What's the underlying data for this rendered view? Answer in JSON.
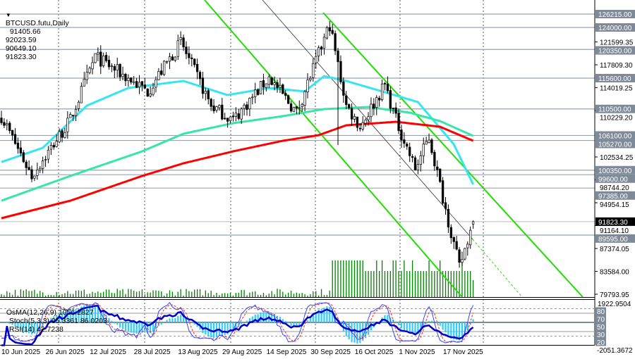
{
  "header": {
    "menu_icon": "triangle-down-icon",
    "symbol": "BTCUSD.futu,Daily",
    "open": "91405.66",
    "high": "92023.59",
    "low": "90649.10",
    "close": "91823.30"
  },
  "indicator_header": {
    "osma": "OsMA(12,26,9) 1056.2827",
    "stoch": "Stoch(5,3,3) 95.3361 86.0203",
    "rsi": "RSI(14) 42.7238"
  },
  "price_axis": {
    "ticks": [
      "121599.35",
      "117809.30",
      "114019.25",
      "110229.20",
      "102534.25",
      "98744.20",
      "94954.15",
      "91164.10",
      "87374.05",
      "83584.00",
      "79793.95"
    ],
    "levels": [
      "126215.00",
      "124000.00",
      "120350.00",
      "115600.00",
      "110500.00",
      "106100.00",
      "105270.00",
      "100350.00",
      "99600.00",
      "97385.00",
      "89595.00"
    ],
    "current_price": "91823.30"
  },
  "indicator_axis": {
    "max": "1922.9504",
    "min": "-2051.3672",
    "levels": [
      "80",
      "70",
      "50",
      "30",
      "20"
    ]
  },
  "time_axis": [
    "10 Jun 2025",
    "26 Jun 2025",
    "12 Jul 2025",
    "28 Jul 2025",
    "13 Aug 2025",
    "29 Aug 2025",
    "14 Sep 2025",
    "30 Sep 2025",
    "16 Oct 2025",
    "1 Nov 2025",
    "17 Nov 2025"
  ],
  "colors": {
    "bull_candle": "#ffffff",
    "bear_candle": "#000000",
    "ma_fast": "#33e6f0",
    "ma_mid": "#36e6a8",
    "ma_slow": "#ff0000",
    "trendline": "#22dd00",
    "level_label": "#7f8a99",
    "osma": "#33ccf5",
    "stoch_main": "#3344ff",
    "stoch_signal": "#ff2020",
    "rsi": "#0000cc",
    "volume": "#008000"
  },
  "chart_data": {
    "type": "candlestick",
    "symbol": "BTCUSD.futu",
    "timeframe": "Daily",
    "x_start": "2025-06-10",
    "last_date": "2025-11-28",
    "y_range": [
      79793.95,
      126215
    ],
    "last_ohlc": [
      91405.66,
      92023.59,
      90649.1,
      91823.3
    ],
    "close_path": [
      [
        "2025-06-10",
        109300
      ],
      [
        "2025-06-21",
        99400
      ],
      [
        "2025-07-05",
        108700
      ],
      [
        "2025-07-14",
        119200
      ],
      [
        "2025-08-02",
        113400
      ],
      [
        "2025-08-14",
        121550
      ],
      [
        "2025-08-25",
        111050
      ],
      [
        "2025-09-02",
        108700
      ],
      [
        "2025-09-15",
        115700
      ],
      [
        "2025-09-25",
        109900
      ],
      [
        "2025-10-07",
        124460
      ],
      [
        "2025-10-13",
        111050
      ],
      [
        "2025-10-18",
        107550
      ],
      [
        "2025-10-27",
        114550
      ],
      [
        "2025-10-31",
        108700
      ],
      [
        "2025-11-07",
        100550
      ],
      [
        "2025-11-12",
        105800
      ],
      [
        "2025-11-17",
        95890
      ],
      [
        "2025-11-23",
        84230
      ],
      [
        "2025-11-28",
        91823.3
      ]
    ],
    "moving_averages": [
      {
        "color_key": "ma_fast",
        "points": [
          [
            "2025-06-10",
            101700
          ],
          [
            "2025-06-25",
            104050
          ],
          [
            "2025-07-11",
            111050
          ],
          [
            "2025-07-26",
            113970
          ],
          [
            "2025-08-15",
            115130
          ],
          [
            "2025-08-31",
            112800
          ],
          [
            "2025-09-15",
            113970
          ],
          [
            "2025-09-28",
            113400
          ],
          [
            "2025-10-05",
            115950
          ],
          [
            "2025-10-13",
            115130
          ],
          [
            "2025-10-26",
            113400
          ],
          [
            "2025-11-08",
            111630
          ],
          [
            "2025-11-21",
            104640
          ],
          [
            "2025-11-28",
            97990
          ]
        ]
      },
      {
        "color_key": "ma_mid",
        "points": [
          [
            "2025-06-10",
            95300
          ],
          [
            "2025-07-05",
            99390
          ],
          [
            "2025-07-31",
            103470
          ],
          [
            "2025-08-15",
            106390
          ],
          [
            "2025-09-02",
            108140
          ],
          [
            "2025-09-20",
            109300
          ],
          [
            "2025-10-05",
            110470
          ],
          [
            "2025-10-21",
            110820
          ],
          [
            "2025-11-05",
            109880
          ],
          [
            "2025-11-16",
            108480
          ],
          [
            "2025-11-28",
            106040
          ]
        ]
      },
      {
        "color_key": "ma_slow",
        "points": [
          [
            "2025-06-10",
            92390
          ],
          [
            "2025-07-05",
            95300
          ],
          [
            "2025-07-31",
            99390
          ],
          [
            "2025-08-15",
            101490
          ],
          [
            "2025-09-02",
            103470
          ],
          [
            "2025-09-20",
            105220
          ],
          [
            "2025-10-03",
            106150
          ],
          [
            "2025-10-13",
            107790
          ],
          [
            "2025-10-31",
            108370
          ],
          [
            "2025-11-16",
            107550
          ],
          [
            "2025-11-28",
            105220
          ]
        ]
      }
    ],
    "grid": true
  }
}
